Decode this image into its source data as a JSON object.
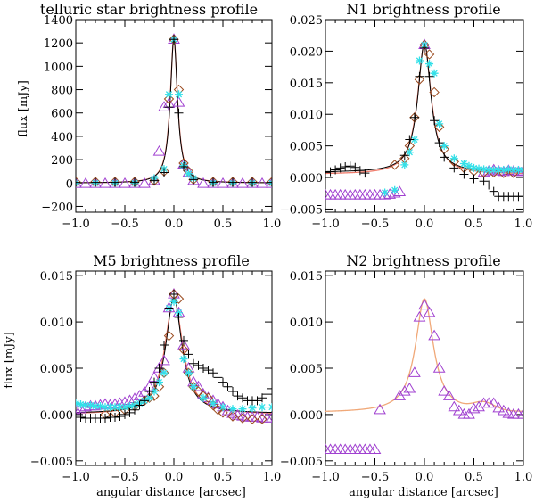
{
  "colors": {
    "cross": "#000000",
    "asterisk": "#33e0e8",
    "diamond": "#9a4a1e",
    "triangle": "#a040d0",
    "fit": "#f07c6c",
    "fit_n2": "#f0a878",
    "black_line": "#000000"
  },
  "chart_data": [
    {
      "type": "scatter",
      "title": "telluric star brightness profile",
      "xlabel": "",
      "ylabel": "flux [mJy]",
      "xlim": [
        -1.0,
        1.0
      ],
      "ylim": [
        -250,
        1400
      ],
      "xticks": [
        "−1.0",
        "−0.5",
        "0.0",
        "0.5",
        "1.0"
      ],
      "yticks": [
        -200,
        0,
        200,
        400,
        600,
        800,
        1000,
        1200,
        1400
      ],
      "ytick_labels": [
        "−200",
        "0",
        "200",
        "400",
        "600",
        "800",
        "1000",
        "1200",
        "1400"
      ],
      "fit": {
        "amp": 1240,
        "base": 0,
        "gamma": 0.045,
        "asym": 0.0,
        "bumps": []
      },
      "black_line": {
        "amp": 1240,
        "base": 0,
        "gamma": 0.044,
        "asym": 0.0
      },
      "series": [
        {
          "name": "triangle",
          "marker": "triangle",
          "x": [
            -1.0,
            -0.9,
            -0.8,
            -0.7,
            -0.6,
            -0.5,
            -0.4,
            -0.3,
            -0.2,
            -0.15,
            -0.1,
            -0.05,
            0.0,
            0.05,
            0.1,
            0.15,
            0.2,
            0.3,
            0.4,
            0.5,
            0.6,
            0.7,
            0.8,
            0.9,
            1.0
          ],
          "y": [
            -5,
            -5,
            -5,
            -5,
            -5,
            -5,
            -5,
            -5,
            20,
            270,
            650,
            680,
            1230,
            690,
            160,
            90,
            20,
            -5,
            -5,
            -5,
            -5,
            -5,
            -5,
            -5,
            -5
          ]
        },
        {
          "name": "diamond",
          "marker": "diamond",
          "x": [
            -1.0,
            -0.8,
            -0.6,
            -0.4,
            -0.2,
            -0.1,
            -0.05,
            0.0,
            0.05,
            0.1,
            0.15,
            0.2,
            0.4,
            0.6,
            0.8,
            1.0
          ],
          "y": [
            10,
            10,
            10,
            10,
            20,
            100,
            720,
            1230,
            800,
            170,
            100,
            30,
            10,
            10,
            10,
            10
          ]
        },
        {
          "name": "asterisk",
          "marker": "asterisk",
          "x": [
            -1.0,
            -0.8,
            -0.6,
            -0.4,
            -0.2,
            -0.1,
            -0.05,
            0.0,
            0.05,
            0.1,
            0.15,
            0.2,
            0.4,
            0.6,
            0.8,
            1.0
          ],
          "y": [
            0,
            0,
            0,
            0,
            40,
            120,
            760,
            1230,
            760,
            150,
            80,
            40,
            0,
            0,
            0,
            0
          ]
        },
        {
          "name": "cross",
          "marker": "cross",
          "x": [
            -1.0,
            -0.8,
            -0.6,
            -0.4,
            -0.2,
            -0.1,
            -0.05,
            0.0,
            0.05,
            0.1,
            0.2,
            0.4,
            0.6,
            0.8,
            1.0
          ],
          "y": [
            5,
            5,
            5,
            5,
            20,
            90,
            650,
            1230,
            600,
            140,
            30,
            5,
            5,
            5,
            5
          ]
        }
      ]
    },
    {
      "type": "scatter",
      "title": "N1 brightness profile",
      "xlabel": "",
      "ylabel": "",
      "xlim": [
        -1.0,
        1.0
      ],
      "ylim": [
        -0.0055,
        0.025
      ],
      "xticks": [
        "−1.0",
        "−0.5",
        "0.0",
        "0.5",
        "1.0"
      ],
      "yticks": [
        -0.005,
        0.0,
        0.005,
        0.01,
        0.015,
        0.02,
        0.025
      ],
      "ytick_labels": [
        "−0.005",
        "0.000",
        "0.005",
        "0.010",
        "0.015",
        "0.020",
        "0.025"
      ],
      "fit": {
        "amp": 0.0205,
        "base": 0.0005,
        "gamma": 0.085,
        "asym": 0.0,
        "bumps": []
      },
      "black_line": {
        "amp": 0.0205,
        "base": 0.0008,
        "gamma": 0.08,
        "asym": 0.0
      },
      "series": [
        {
          "name": "triangle",
          "marker": "triangle",
          "x": [
            -1.0,
            -0.95,
            -0.9,
            -0.85,
            -0.8,
            -0.75,
            -0.7,
            -0.65,
            -0.6,
            -0.55,
            -0.5,
            -0.45,
            -0.4,
            -0.35,
            -0.3,
            -0.25,
            0.0,
            0.6,
            0.65,
            0.7,
            0.75,
            0.8,
            0.85,
            0.9,
            0.95,
            1.0
          ],
          "y": [
            -0.0028,
            -0.0028,
            -0.0028,
            -0.0028,
            -0.0028,
            -0.0028,
            -0.0028,
            -0.0028,
            -0.0028,
            -0.0028,
            -0.0028,
            -0.0028,
            -0.0028,
            -0.0027,
            -0.0025,
            -0.0023,
            0.021,
            0.0008,
            0.001,
            0.0012,
            0.001,
            0.0009,
            0.0011,
            0.001,
            0.0009,
            0.001
          ]
        },
        {
          "name": "diamond",
          "marker": "diamond",
          "x": [
            -0.3,
            -0.2,
            -0.15,
            -0.1,
            -0.05,
            0.0,
            0.05,
            0.1,
            0.15,
            0.2,
            0.3,
            0.4,
            0.5,
            0.6,
            0.7,
            0.8,
            0.9
          ],
          "y": [
            0.002,
            0.003,
            0.005,
            0.0095,
            0.0155,
            0.021,
            0.0195,
            0.0135,
            0.008,
            0.0045,
            0.0025,
            0.0015,
            0.001,
            0.0008,
            0.0008,
            0.0007,
            0.0007
          ]
        },
        {
          "name": "asterisk",
          "marker": "asterisk",
          "x": [
            -0.4,
            -0.3,
            -0.2,
            -0.15,
            -0.1,
            -0.05,
            0.0,
            0.05,
            0.1,
            0.15,
            0.2,
            0.3,
            0.4,
            0.45,
            0.5,
            0.55,
            0.6,
            0.65,
            0.7,
            0.75,
            0.8,
            0.85,
            0.9,
            0.95,
            1.0
          ],
          "y": [
            -0.0024,
            -0.002,
            0.002,
            0.004,
            0.006,
            0.0185,
            0.021,
            0.018,
            0.0165,
            0.0085,
            0.005,
            0.003,
            0.0022,
            0.0018,
            0.0015,
            0.0014,
            0.0013,
            0.0012,
            0.0012,
            0.0012,
            0.0012,
            0.0013,
            0.0012,
            0.0012,
            0.0012
          ]
        },
        {
          "name": "cross",
          "marker": "cross",
          "x": [
            -1.0,
            -0.95,
            -0.9,
            -0.85,
            -0.8,
            -0.75,
            -0.7,
            -0.65,
            -0.6,
            -0.2,
            -0.15,
            -0.1,
            -0.05,
            0.0,
            0.05,
            0.1,
            0.15,
            0.2,
            0.3,
            0.4,
            0.5,
            0.6,
            0.65,
            0.7,
            0.75,
            0.8,
            0.85,
            0.9,
            0.95,
            1.0
          ],
          "y": [
            0.0008,
            0.0009,
            0.0012,
            0.0015,
            0.0017,
            0.0018,
            0.0016,
            0.0011,
            0.0007,
            0.0035,
            0.006,
            0.0095,
            0.016,
            0.0205,
            0.016,
            0.009,
            0.0055,
            0.0032,
            0.0015,
            0.0005,
            -0.0002,
            -0.0006,
            -0.0012,
            -0.0022,
            -0.003,
            -0.003,
            -0.003,
            -0.003,
            -0.003,
            -0.003
          ]
        }
      ]
    },
    {
      "type": "scatter",
      "title": "M5   brightness profile",
      "xlabel": "angular distance [arcsec]",
      "ylabel": "flux [mJy]",
      "xlim": [
        -1.0,
        1.0
      ],
      "ylim": [
        -0.0055,
        0.0155
      ],
      "xticks": [
        "−1.0",
        "−0.5",
        "0.0",
        "0.5",
        "1.0"
      ],
      "yticks": [
        -0.005,
        0.0,
        0.005,
        0.01,
        0.015
      ],
      "ytick_labels": [
        "−0.005",
        "0.000",
        "0.005",
        "0.010",
        "0.015"
      ],
      "fit": {
        "amp": 0.0125,
        "base": 0.0,
        "gamma": 0.11,
        "asym": 0.0,
        "bumps": []
      },
      "black_line": {
        "amp": 0.0125,
        "base": 0.0001,
        "gamma": 0.1,
        "asym": 0.0
      },
      "series": [
        {
          "name": "triangle",
          "marker": "triangle",
          "x": [
            -1.0,
            -0.95,
            -0.9,
            -0.85,
            -0.8,
            -0.75,
            -0.7,
            -0.65,
            -0.6,
            -0.55,
            -0.5,
            -0.45,
            -0.4,
            -0.35,
            -0.3,
            -0.25,
            -0.2,
            -0.15,
            -0.1,
            -0.05,
            0.0,
            0.05,
            0.1,
            0.15,
            0.2,
            0.25,
            0.3,
            0.35,
            0.4,
            0.45,
            0.5,
            0.55,
            0.6,
            0.65,
            0.7,
            0.75,
            0.8,
            0.85,
            0.9,
            0.95,
            1.0
          ],
          "y": [
            0.0005,
            0.0006,
            0.0008,
            0.0009,
            0.0009,
            0.001,
            0.0011,
            0.001,
            0.0011,
            0.0012,
            0.0013,
            0.0015,
            0.0017,
            0.002,
            0.0024,
            0.003,
            0.004,
            0.005,
            0.0058,
            0.0115,
            0.013,
            0.011,
            0.0075,
            0.005,
            0.0035,
            0.003,
            0.0022,
            0.0018,
            0.0015,
            0.0011,
            0.0008,
            0.0004,
            0.0001,
            -0.0001,
            -0.0002,
            -0.0003,
            -0.0003,
            -0.0003,
            -0.0004,
            -0.0004,
            -0.0004
          ]
        },
        {
          "name": "diamond",
          "marker": "diamond",
          "x": [
            -0.7,
            -0.6,
            -0.5,
            -0.4,
            -0.3,
            -0.25,
            -0.2,
            -0.15,
            -0.1,
            -0.05,
            0.0,
            0.05,
            0.1,
            0.15,
            0.2,
            0.25,
            0.3,
            0.35,
            0.4,
            0.45,
            0.5,
            0.6,
            0.7,
            0.8,
            0.9
          ],
          "y": [
            0.0,
            0.0002,
            0.0005,
            0.0009,
            0.0015,
            0.0018,
            0.002,
            0.003,
            0.0045,
            0.0085,
            0.013,
            0.0125,
            0.007,
            0.0045,
            0.003,
            0.0025,
            0.002,
            0.0018,
            0.001,
            0.0005,
            0.0002,
            -0.0002,
            -0.0004,
            -0.0005,
            -0.0005
          ]
        },
        {
          "name": "asterisk",
          "marker": "asterisk",
          "x": [
            -1.0,
            -0.95,
            -0.9,
            -0.85,
            -0.8,
            -0.75,
            -0.7,
            -0.65,
            -0.6,
            -0.55,
            -0.5,
            -0.45,
            -0.4,
            -0.35,
            -0.3,
            -0.25,
            -0.2,
            -0.15,
            -0.1,
            -0.05,
            0.0,
            0.05,
            0.1,
            0.15,
            0.2,
            0.3,
            0.4,
            0.5,
            0.6,
            0.7,
            0.8,
            0.9,
            1.0
          ],
          "y": [
            0.0012,
            0.0011,
            0.001,
            0.001,
            0.0009,
            0.0009,
            0.0008,
            0.0008,
            0.0008,
            0.0008,
            0.0008,
            0.0009,
            0.001,
            0.0012,
            0.0015,
            0.0018,
            0.0025,
            0.0035,
            0.0045,
            0.0115,
            0.0122,
            0.011,
            0.006,
            0.0045,
            0.003,
            0.0018,
            0.0012,
            0.0008,
            0.0006,
            0.0006,
            0.0007,
            0.0008,
            0.0008
          ]
        },
        {
          "name": "cross",
          "marker": "cross",
          "x": [
            -1.0,
            -0.95,
            -0.9,
            -0.85,
            -0.8,
            -0.75,
            -0.7,
            -0.65,
            -0.6,
            -0.55,
            -0.5,
            -0.45,
            -0.4,
            -0.35,
            -0.3,
            -0.25,
            -0.2,
            -0.15,
            -0.1,
            -0.05,
            0.0,
            0.05,
            0.1,
            0.15,
            0.2,
            0.25,
            0.3,
            0.35,
            0.4,
            0.45,
            0.5,
            0.55,
            0.6,
            0.65,
            0.7,
            0.75,
            0.8,
            0.85,
            0.9,
            0.95,
            1.0
          ],
          "y": [
            -0.0003,
            -0.0003,
            -0.0004,
            -0.0004,
            -0.0004,
            -0.0004,
            -0.0004,
            -0.0003,
            -0.0003,
            -0.0002,
            0.0,
            0.0002,
            0.0005,
            0.001,
            0.0015,
            0.0025,
            0.0035,
            0.005,
            0.0075,
            0.0115,
            0.013,
            0.0105,
            0.008,
            0.0065,
            0.0055,
            0.0053,
            0.005,
            0.0048,
            0.0045,
            0.004,
            0.0035,
            0.003,
            0.0025,
            0.002,
            0.0018,
            0.0015,
            0.0015,
            0.0015,
            0.0018,
            0.0022,
            0.0028
          ]
        }
      ]
    },
    {
      "type": "scatter",
      "title": "N2 brightness profile",
      "xlabel": "angular distance [arcsec]",
      "ylabel": "",
      "xlim": [
        -1.0,
        1.0
      ],
      "ylim": [
        -0.0055,
        0.0155
      ],
      "xticks": [
        "−1.0",
        "−0.5",
        "0.0",
        "0.5",
        "1.0"
      ],
      "yticks": [
        -0.005,
        0.0,
        0.005,
        0.01,
        0.015
      ],
      "ytick_labels": [
        "−0.005",
        "0.000",
        "0.005",
        "0.010",
        "0.015"
      ],
      "fit": {
        "amp": 0.0123,
        "base": 0.0002,
        "gamma": 0.11,
        "asym": 0.0,
        "bumps": [
          {
            "x0": 0.6,
            "amp": 0.0008,
            "w": 0.15
          }
        ]
      },
      "black_line": null,
      "series": [
        {
          "name": "triangle",
          "marker": "triangle",
          "x": [
            -1.0,
            -0.95,
            -0.9,
            -0.85,
            -0.8,
            -0.75,
            -0.7,
            -0.65,
            -0.6,
            -0.55,
            -0.5,
            -0.45,
            -0.25,
            -0.2,
            -0.15,
            -0.1,
            -0.05,
            0.0,
            0.05,
            0.1,
            0.15,
            0.2,
            0.25,
            0.3,
            0.35,
            0.4,
            0.45,
            0.5,
            0.55,
            0.6,
            0.65,
            0.7,
            0.75,
            0.8,
            0.85,
            0.9,
            0.95,
            1.0
          ],
          "y": [
            -0.0038,
            -0.0038,
            -0.0038,
            -0.0038,
            -0.0038,
            -0.0038,
            -0.0038,
            -0.0038,
            -0.0038,
            -0.0038,
            -0.0038,
            0.0005,
            0.002,
            0.0025,
            0.0028,
            0.0045,
            0.0105,
            0.0118,
            0.011,
            0.0085,
            0.005,
            0.0025,
            0.002,
            0.0008,
            0.0004,
            0.0,
            0.0,
            0.0006,
            0.0008,
            0.0012,
            0.0012,
            0.0012,
            0.0007,
            0.0004,
            0.0001,
            0.0,
            0.0,
            0.0
          ]
        }
      ]
    }
  ]
}
